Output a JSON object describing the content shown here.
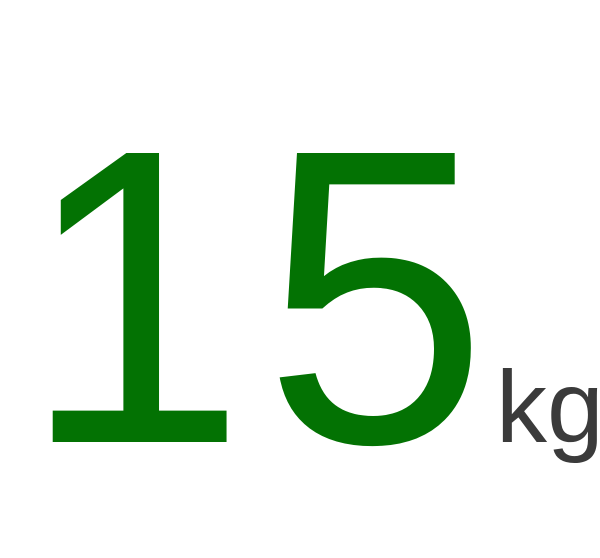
{
  "readout": {
    "value": "15",
    "unit": "kg"
  },
  "colors": {
    "value": "#037203",
    "unit": "#3b3b3b",
    "background": "#ffffff"
  }
}
